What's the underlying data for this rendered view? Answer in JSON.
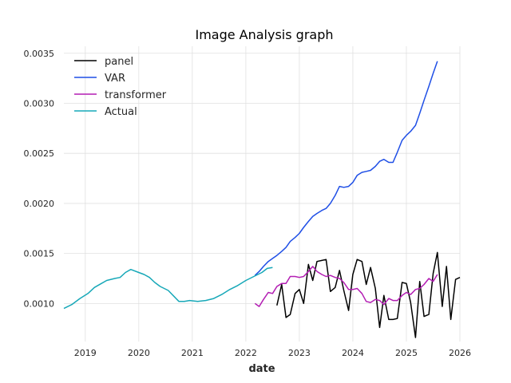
{
  "chart_data": {
    "type": "line",
    "title": "Image Analysis graph",
    "xlabel": "date",
    "ylabel": "",
    "xlim": [
      2018.6,
      2026.0
    ],
    "ylim": [
      0.00062,
      0.00357
    ],
    "grid": true,
    "legend_position": "top-left",
    "x_ticks": [
      2019,
      2020,
      2021,
      2022,
      2023,
      2024,
      2025,
      2026
    ],
    "x_tick_labels": [
      "2019",
      "2020",
      "2021",
      "2022",
      "2023",
      "2024",
      "2025",
      "2026"
    ],
    "y_ticks": [
      0.001,
      0.0015,
      0.002,
      0.0025,
      0.003,
      0.0035
    ],
    "y_tick_labels": [
      "0.0010",
      "0.0015",
      "0.0020",
      "0.0025",
      "0.0030",
      "0.0035"
    ],
    "series": [
      {
        "name": "panel",
        "color": "#000000",
        "points": [
          [
            2022.58,
            0.00098
          ],
          [
            2022.67,
            0.00119
          ],
          [
            2022.75,
            0.00086
          ],
          [
            2022.83,
            0.00089
          ],
          [
            2022.92,
            0.0011
          ],
          [
            2023.0,
            0.00114
          ],
          [
            2023.08,
            0.001
          ],
          [
            2023.17,
            0.00139
          ],
          [
            2023.25,
            0.00123
          ],
          [
            2023.33,
            0.00142
          ],
          [
            2023.42,
            0.00143
          ],
          [
            2023.5,
            0.00144
          ],
          [
            2023.58,
            0.00112
          ],
          [
            2023.67,
            0.00116
          ],
          [
            2023.75,
            0.00133
          ],
          [
            2023.83,
            0.00113
          ],
          [
            2023.92,
            0.00093
          ],
          [
            2024.0,
            0.00129
          ],
          [
            2024.08,
            0.00144
          ],
          [
            2024.17,
            0.00142
          ],
          [
            2024.25,
            0.00119
          ],
          [
            2024.33,
            0.00136
          ],
          [
            2024.42,
            0.00115
          ],
          [
            2024.5,
            0.00076
          ],
          [
            2024.58,
            0.00108
          ],
          [
            2024.67,
            0.00084
          ],
          [
            2024.75,
            0.00084
          ],
          [
            2024.83,
            0.00085
          ],
          [
            2024.92,
            0.00121
          ],
          [
            2025.0,
            0.0012
          ],
          [
            2025.08,
            0.00101
          ],
          [
            2025.17,
            0.00066
          ],
          [
            2025.25,
            0.00122
          ],
          [
            2025.33,
            0.00087
          ],
          [
            2025.42,
            0.00089
          ],
          [
            2025.5,
            0.0013
          ],
          [
            2025.58,
            0.00151
          ],
          [
            2025.67,
            0.00097
          ],
          [
            2025.75,
            0.00137
          ],
          [
            2025.83,
            0.00084
          ],
          [
            2025.92,
            0.00124
          ],
          [
            2026.0,
            0.00126
          ]
        ]
      },
      {
        "name": "VAR",
        "color": "#1f4fe6",
        "points": [
          [
            2022.17,
            0.00128
          ],
          [
            2022.25,
            0.00132
          ],
          [
            2022.33,
            0.00137
          ],
          [
            2022.42,
            0.00142
          ],
          [
            2022.5,
            0.00145
          ],
          [
            2022.58,
            0.00148
          ],
          [
            2022.67,
            0.00152
          ],
          [
            2022.75,
            0.00156
          ],
          [
            2022.83,
            0.00162
          ],
          [
            2022.92,
            0.00166
          ],
          [
            2023.0,
            0.0017
          ],
          [
            2023.08,
            0.00176
          ],
          [
            2023.17,
            0.00182
          ],
          [
            2023.25,
            0.00187
          ],
          [
            2023.33,
            0.0019
          ],
          [
            2023.42,
            0.00193
          ],
          [
            2023.5,
            0.00195
          ],
          [
            2023.58,
            0.002
          ],
          [
            2023.67,
            0.00208
          ],
          [
            2023.75,
            0.00217
          ],
          [
            2023.83,
            0.00216
          ],
          [
            2023.92,
            0.00217
          ],
          [
            2024.0,
            0.00221
          ],
          [
            2024.08,
            0.00228
          ],
          [
            2024.17,
            0.00231
          ],
          [
            2024.25,
            0.00232
          ],
          [
            2024.33,
            0.00233
          ],
          [
            2024.42,
            0.00237
          ],
          [
            2024.5,
            0.00242
          ],
          [
            2024.58,
            0.00244
          ],
          [
            2024.67,
            0.00241
          ],
          [
            2024.75,
            0.00241
          ],
          [
            2024.83,
            0.00251
          ],
          [
            2024.92,
            0.00263
          ],
          [
            2025.0,
            0.00268
          ],
          [
            2025.08,
            0.00272
          ],
          [
            2025.17,
            0.00278
          ],
          [
            2025.25,
            0.0029
          ],
          [
            2025.33,
            0.00303
          ],
          [
            2025.42,
            0.00317
          ],
          [
            2025.5,
            0.0033
          ],
          [
            2025.58,
            0.00342
          ]
        ]
      },
      {
        "name": "transformer",
        "color": "#b31db3",
        "points": [
          [
            2022.17,
            0.001
          ],
          [
            2022.25,
            0.00097
          ],
          [
            2022.33,
            0.00104
          ],
          [
            2022.42,
            0.00111
          ],
          [
            2022.5,
            0.0011
          ],
          [
            2022.58,
            0.00117
          ],
          [
            2022.67,
            0.0012
          ],
          [
            2022.75,
            0.0012
          ],
          [
            2022.83,
            0.00127
          ],
          [
            2022.92,
            0.00127
          ],
          [
            2023.0,
            0.00126
          ],
          [
            2023.08,
            0.00127
          ],
          [
            2023.17,
            0.00132
          ],
          [
            2023.25,
            0.00137
          ],
          [
            2023.33,
            0.00132
          ],
          [
            2023.42,
            0.00129
          ],
          [
            2023.5,
            0.00127
          ],
          [
            2023.58,
            0.00128
          ],
          [
            2023.67,
            0.00126
          ],
          [
            2023.75,
            0.00125
          ],
          [
            2023.83,
            0.00121
          ],
          [
            2023.92,
            0.00114
          ],
          [
            2024.0,
            0.00114
          ],
          [
            2024.08,
            0.00115
          ],
          [
            2024.17,
            0.0011
          ],
          [
            2024.25,
            0.00102
          ],
          [
            2024.33,
            0.00101
          ],
          [
            2024.42,
            0.00104
          ],
          [
            2024.5,
            0.00103
          ],
          [
            2024.58,
            0.00099
          ],
          [
            2024.67,
            0.00105
          ],
          [
            2024.75,
            0.00103
          ],
          [
            2024.83,
            0.00103
          ],
          [
            2024.92,
            0.00108
          ],
          [
            2025.0,
            0.00111
          ],
          [
            2025.08,
            0.00109
          ],
          [
            2025.17,
            0.00114
          ],
          [
            2025.25,
            0.00115
          ],
          [
            2025.33,
            0.00119
          ],
          [
            2025.42,
            0.00125
          ],
          [
            2025.5,
            0.00122
          ],
          [
            2025.58,
            0.00129
          ]
        ]
      },
      {
        "name": "Actual",
        "color": "#17a8b8",
        "points": [
          [
            2018.6,
            0.00095
          ],
          [
            2018.75,
            0.00099
          ],
          [
            2018.9,
            0.00105
          ],
          [
            2019.05,
            0.0011
          ],
          [
            2019.17,
            0.00116
          ],
          [
            2019.3,
            0.0012
          ],
          [
            2019.4,
            0.00123
          ],
          [
            2019.55,
            0.00125
          ],
          [
            2019.65,
            0.00126
          ],
          [
            2019.75,
            0.00131
          ],
          [
            2019.85,
            0.00134
          ],
          [
            2020.0,
            0.00131
          ],
          [
            2020.1,
            0.00129
          ],
          [
            2020.2,
            0.00126
          ],
          [
            2020.3,
            0.00121
          ],
          [
            2020.4,
            0.00117
          ],
          [
            2020.55,
            0.00113
          ],
          [
            2020.75,
            0.00102
          ],
          [
            2020.85,
            0.00102
          ],
          [
            2020.95,
            0.00103
          ],
          [
            2021.1,
            0.00102
          ],
          [
            2021.25,
            0.00103
          ],
          [
            2021.4,
            0.00105
          ],
          [
            2021.55,
            0.00109
          ],
          [
            2021.7,
            0.00114
          ],
          [
            2021.85,
            0.00118
          ],
          [
            2022.0,
            0.00123
          ],
          [
            2022.15,
            0.00127
          ],
          [
            2022.3,
            0.00131
          ],
          [
            2022.4,
            0.00135
          ],
          [
            2022.5,
            0.00136
          ]
        ]
      }
    ]
  }
}
